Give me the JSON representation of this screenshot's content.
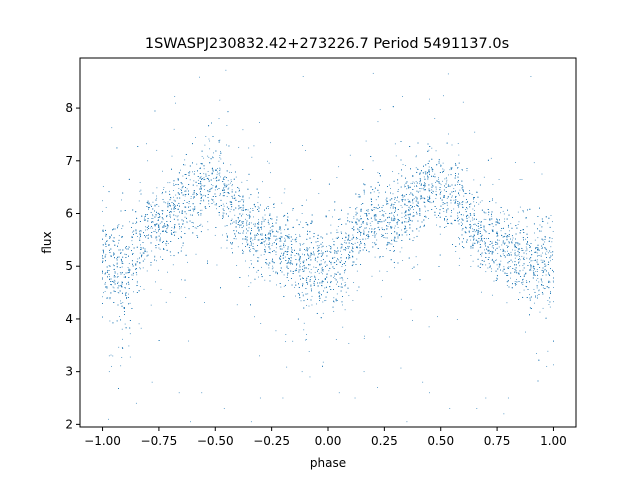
{
  "chart_data": {
    "type": "scatter",
    "title": "1SWASPJ230832.42+273226.7 Period 5491137.0s",
    "xlabel": "phase",
    "ylabel": "flux",
    "xlim": [
      -1.1,
      1.1
    ],
    "ylim": [
      1.95,
      8.95
    ],
    "x_ticks": [
      -1.0,
      -0.75,
      -0.5,
      -0.25,
      0.0,
      0.25,
      0.5,
      0.75,
      1.0
    ],
    "x_tick_labels": [
      "−1.00",
      "−0.75",
      "−0.50",
      "−0.25",
      "0.00",
      "0.25",
      "0.50",
      "0.75",
      "1.00"
    ],
    "y_ticks": [
      2,
      3,
      4,
      5,
      6,
      7,
      8
    ],
    "y_tick_labels": [
      "2",
      "3",
      "4",
      "5",
      "6",
      "7",
      "8"
    ],
    "grid": false,
    "marker_color": "#1f77b4",
    "series": [
      {
        "phase": [
          -1.0,
          -0.95,
          -0.9,
          -0.85,
          -0.8,
          -0.75,
          -0.7,
          -0.65,
          -0.6,
          -0.55,
          -0.5,
          -0.45,
          -0.4,
          -0.35,
          -0.3,
          -0.25,
          -0.2,
          -0.15,
          -0.1,
          -0.05,
          0.0,
          0.05,
          0.1,
          0.15,
          0.2,
          0.25,
          0.3,
          0.35,
          0.4,
          0.45,
          0.5,
          0.55,
          0.6,
          0.65,
          0.7,
          0.75,
          0.8,
          0.85,
          0.9,
          0.95,
          1.0
        ],
        "flux_center": [
          5.1,
          4.9,
          4.7,
          5.2,
          5.7,
          5.8,
          5.9,
          6.1,
          6.3,
          6.5,
          6.5,
          6.3,
          6.0,
          5.7,
          5.5,
          5.4,
          5.3,
          5.2,
          5.1,
          5.0,
          5.0,
          5.1,
          5.4,
          5.7,
          5.8,
          5.8,
          5.9,
          6.1,
          6.3,
          6.5,
          6.5,
          6.3,
          6.0,
          5.7,
          5.5,
          5.4,
          5.3,
          5.2,
          5.1,
          5.0,
          5.1
        ],
        "flux_spread": [
          0.55,
          0.6,
          0.6,
          0.55,
          0.45,
          0.4,
          0.45,
          0.45,
          0.4,
          0.4,
          0.45,
          0.45,
          0.45,
          0.45,
          0.4,
          0.4,
          0.45,
          0.45,
          0.5,
          0.55,
          0.55,
          0.55,
          0.5,
          0.45,
          0.4,
          0.4,
          0.45,
          0.45,
          0.4,
          0.4,
          0.45,
          0.45,
          0.45,
          0.45,
          0.4,
          0.4,
          0.45,
          0.45,
          0.5,
          0.55,
          0.55
        ]
      }
    ],
    "outliers": [
      [
        -0.68,
        8.22
      ],
      [
        -0.48,
        8.15
      ],
      [
        -0.45,
        7.3
      ],
      [
        0.33,
        8.22
      ],
      [
        0.45,
        8.17
      ],
      [
        0.55,
        7.3
      ],
      [
        -0.11,
        8.6
      ],
      [
        0.9,
        8.6
      ],
      [
        -0.97,
        3.3
      ],
      [
        -0.97,
        3.0
      ],
      [
        -0.96,
        3.1
      ],
      [
        -0.66,
        2.6
      ],
      [
        -0.61,
        2.05
      ],
      [
        -0.56,
        2.6
      ],
      [
        -0.46,
        2.3
      ],
      [
        -0.34,
        2.05
      ],
      [
        -0.3,
        2.5
      ],
      [
        -0.2,
        2.5
      ],
      [
        -0.1,
        3.6
      ],
      [
        0.05,
        2.6
      ],
      [
        0.16,
        3.0
      ],
      [
        0.22,
        2.7
      ],
      [
        0.35,
        2.05
      ],
      [
        0.42,
        2.8
      ],
      [
        0.45,
        2.6
      ],
      [
        0.54,
        2.3
      ],
      [
        0.66,
        2.3
      ],
      [
        0.7,
        2.5
      ],
      [
        0.8,
        2.5
      ],
      [
        0.78,
        2.2
      ],
      [
        -0.78,
        2.8
      ],
      [
        -0.85,
        2.4
      ],
      [
        -0.08,
        2.9
      ],
      [
        0.12,
        2.5
      ],
      [
        -0.8,
        7.0
      ],
      [
        0.2,
        7.0
      ],
      [
        0.97,
        3.1
      ]
    ]
  }
}
